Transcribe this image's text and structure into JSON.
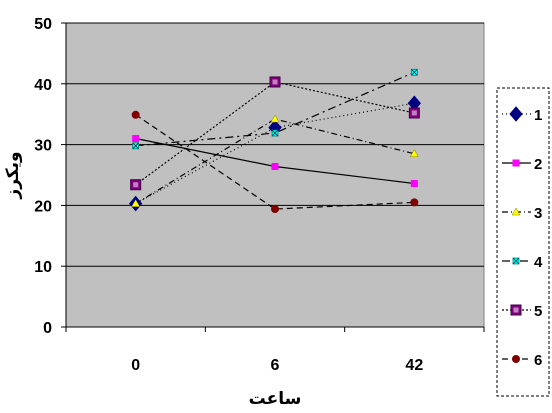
{
  "chart_data": {
    "type": "line",
    "title": "",
    "xlabel": "ساعت",
    "ylabel": "ویکرز",
    "categories": [
      "0",
      "6",
      "42"
    ],
    "ylim": [
      0,
      50
    ],
    "yticks": [
      0,
      10,
      20,
      30,
      40,
      50
    ],
    "grid": true,
    "plot_background": "#c0c0c0",
    "legend_position": "right",
    "series": [
      {
        "name": "1",
        "values": [
          20.3,
          32.8,
          36.8
        ],
        "color": "#000080",
        "dash": "1 3",
        "marker": "diamond"
      },
      {
        "name": "2",
        "values": [
          31.0,
          26.4,
          23.6
        ],
        "color": "#ff00ff",
        "dash": "",
        "marker": "square"
      },
      {
        "name": "3",
        "values": [
          20.3,
          34.2,
          28.5
        ],
        "color": "#ffff00",
        "dash": "6 3 1 3",
        "marker": "triangle"
      },
      {
        "name": "4",
        "values": [
          29.8,
          31.9,
          41.9
        ],
        "color": "#00ffff",
        "dash": "8 4 2 4",
        "marker": "x"
      },
      {
        "name": "5",
        "values": [
          23.4,
          40.3,
          35.2
        ],
        "color": "#800080",
        "dash": "2 2",
        "marker": "bigsquare"
      },
      {
        "name": "6",
        "values": [
          34.9,
          19.4,
          20.5
        ],
        "color": "#800000",
        "dash": "6 4",
        "marker": "circle"
      }
    ]
  }
}
